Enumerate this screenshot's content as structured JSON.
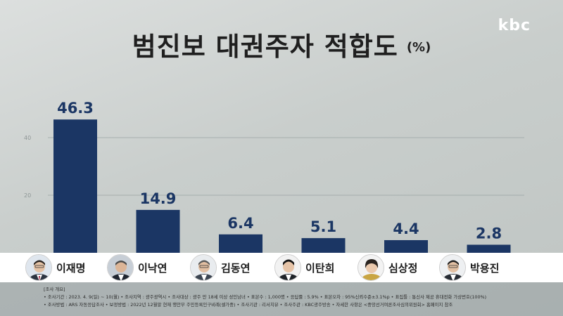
{
  "brand": {
    "logo_text": "kbc"
  },
  "header": {
    "title": "범진보 대권주자 적합도",
    "unit": "(%)"
  },
  "colors": {
    "bar": "#1b3664",
    "value_text": "#1b3664",
    "gridline": "#9aa3a3",
    "tick_text": "#8d9595"
  },
  "chart_data": {
    "type": "bar",
    "categories": [
      "이재명",
      "이낙연",
      "김동연",
      "이탄희",
      "심상정",
      "박용진"
    ],
    "values": [
      46.3,
      14.9,
      6.4,
      5.1,
      4.4,
      2.8
    ],
    "value_labels": [
      "46.3",
      "14.9",
      "6.4",
      "5.1",
      "4.4",
      "2.8"
    ],
    "yticks": [
      20,
      40
    ],
    "ylim": [
      0,
      50
    ],
    "title": "범진보 대권주자 적합도",
    "ylabel": "(%)",
    "grid": true
  },
  "candidates": [
    {
      "name": "이재명",
      "icon": "portrait-icon"
    },
    {
      "name": "이낙연",
      "icon": "portrait-icon"
    },
    {
      "name": "김동연",
      "icon": "portrait-icon"
    },
    {
      "name": "이탄희",
      "icon": "portrait-icon"
    },
    {
      "name": "심상정",
      "icon": "portrait-icon"
    },
    {
      "name": "박용진",
      "icon": "portrait-icon"
    }
  ],
  "survey_notes": {
    "heading": "[조사 개요]",
    "line1": "• 조사기간 : 2023. 4. 9(일) ~ 10(월)  • 조사지역 : 광주광역시  • 조사대상 : 광주 만 18세 이상 성인남녀  • 표본수 : 1,000명  • 응답률 : 5.9%  • 표본오차 : 95%신뢰수준±3.1%p  • 표집틀 : 통신사 제공 휴대전화 가상번호(100%)",
    "line2": "• 조사방법 : ARS 자동응답조사  • 보정방법 : 2022년 12월말 현재 행안부 주민등록인구비례(셀가중)  • 조사기관 : 리서치뷰  • 조사주관 : KBC광주방송  • 자세한 사항은 <중앙선거여론조사심의위원회> 홈페이지 참조"
  }
}
